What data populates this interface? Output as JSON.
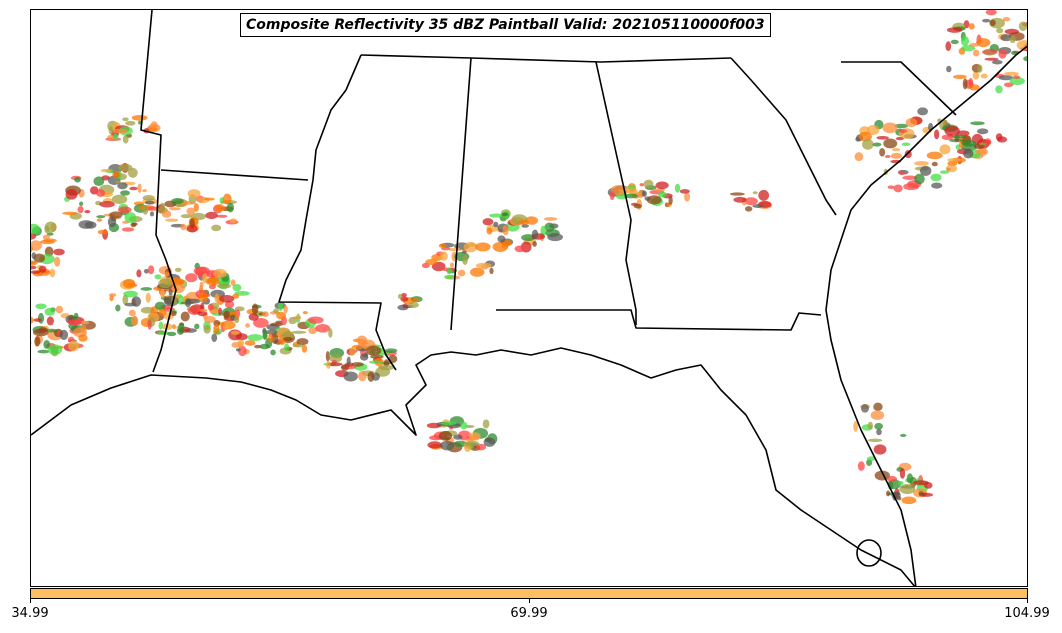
{
  "title": "Composite Reflectivity 35 dBZ Paintball Valid: 202105110000f003",
  "colorbar": {
    "color": "#fdbf60",
    "tick_labels": [
      "34.99",
      "69.99",
      "104.99"
    ]
  },
  "palette": {
    "border_color": "#000000",
    "ensemble_colors": [
      "#ff4444",
      "#fd8d3c",
      "#f7a63c",
      "#44dd44",
      "#2e8b2e",
      "#a0a040",
      "#8b4513",
      "#5a5a5a",
      "#d02020",
      "#ff7700"
    ]
  }
}
